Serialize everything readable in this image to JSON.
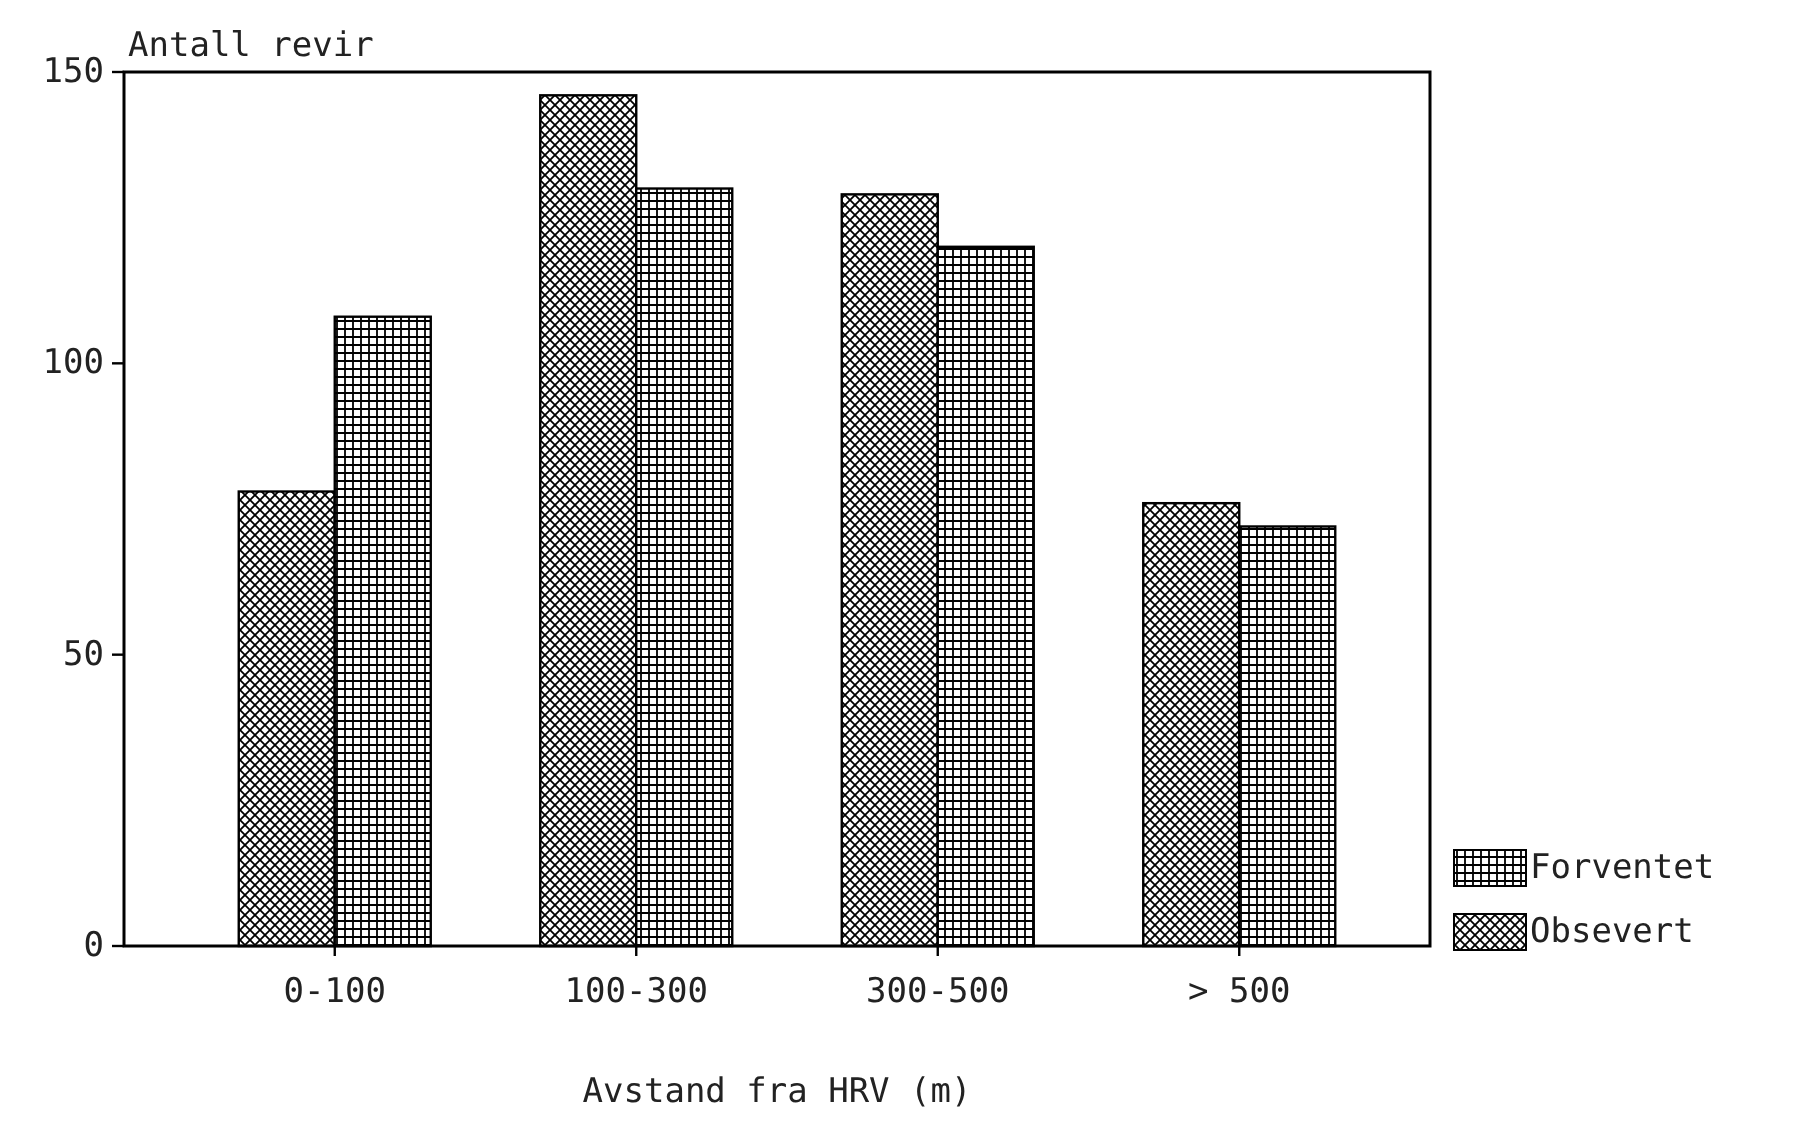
{
  "chart_data": {
    "type": "bar",
    "xlabel": "Avstand fra HRV (m)",
    "ylabel": "Antall revir",
    "categories": [
      "0-100",
      "100-300",
      "300-500",
      "> 500"
    ],
    "series": [
      {
        "name": "Obsevert",
        "color": "#000000",
        "values": [
          78,
          146,
          129,
          76
        ]
      },
      {
        "name": "Forventet",
        "color": "#000000",
        "values": [
          108,
          130,
          120,
          72
        ]
      }
    ],
    "ylim": [
      0,
      150
    ],
    "yticks": [
      0,
      50,
      100,
      150
    ],
    "grid": false,
    "legend": "bottom right"
  }
}
